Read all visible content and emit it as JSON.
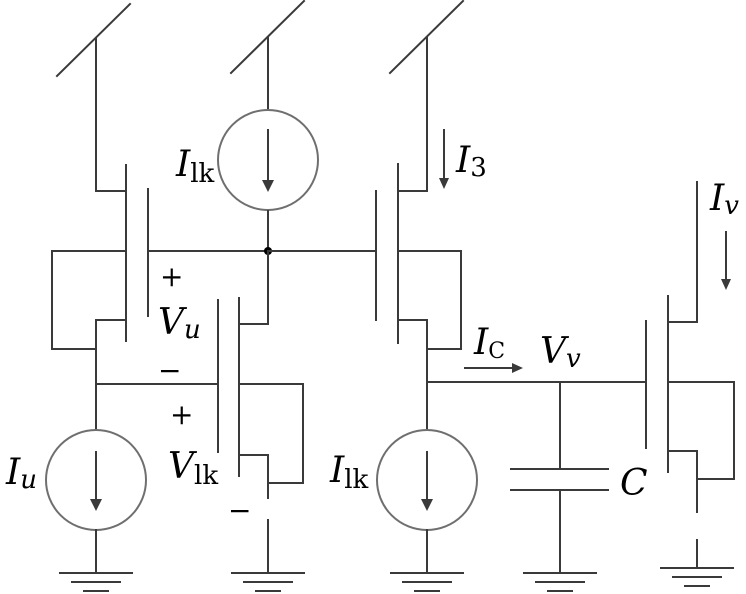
{
  "labels": {
    "i_lk_top": {
      "main": "I",
      "sub": "lk"
    },
    "i_3": {
      "main": "I",
      "sub": "3"
    },
    "i_v": {
      "main": "I",
      "sub": "v"
    },
    "plus_1": "+",
    "v_u": {
      "main": "V",
      "sub": "u"
    },
    "minus_1": "−",
    "plus_2": "+",
    "v_lk": {
      "main": "V",
      "sub": "lk"
    },
    "minus_2": "−",
    "i_u": {
      "main": "I",
      "sub": "u"
    },
    "i_lk_bottom": {
      "main": "I",
      "sub": "lk"
    },
    "i_c": {
      "main": "I",
      "sub": "C"
    },
    "v_v": {
      "main": "V",
      "sub": "v"
    },
    "c": "C"
  },
  "colors": {
    "wire": "#3a3a3a",
    "source_outline": "#6f6f6f",
    "text": "#000000"
  }
}
